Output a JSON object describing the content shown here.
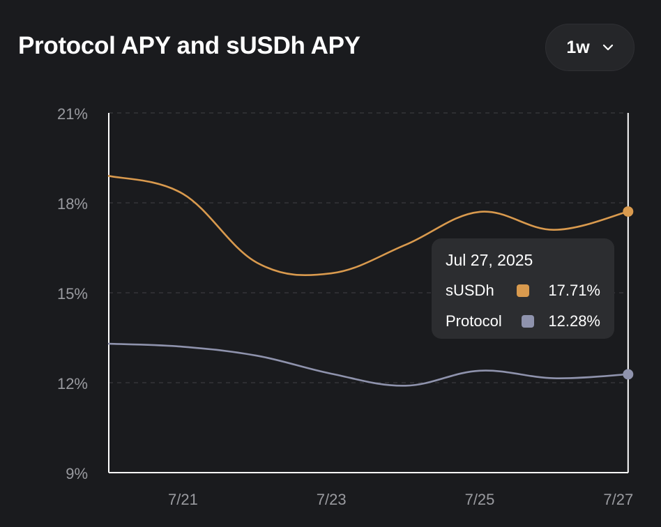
{
  "header": {
    "title": "Protocol APY and sUSDh APY"
  },
  "range_select": {
    "label": "1w",
    "icon": "chevron-down-icon"
  },
  "tooltip": {
    "date": "Jul 27, 2025",
    "rows": [
      {
        "label": "sUSDh",
        "value": "17.71%",
        "color": "#d99a4e"
      },
      {
        "label": "Protocol",
        "value": "12.28%",
        "color": "#8f93ad"
      }
    ]
  },
  "chart_data": {
    "type": "line",
    "title": "Protocol APY and sUSDh APY",
    "x": [
      "7/20",
      "7/21",
      "7/22",
      "7/23",
      "7/24",
      "7/25",
      "7/26",
      "7/27"
    ],
    "x_tick_labels": [
      "7/21",
      "7/23",
      "7/25",
      "7/27"
    ],
    "ylim": [
      9,
      21
    ],
    "y_ticks": [
      9,
      12,
      15,
      18,
      21
    ],
    "y_tick_labels": [
      "9%",
      "12%",
      "15%",
      "18%",
      "21%"
    ],
    "grid": "horizontal dashed",
    "series": [
      {
        "name": "sUSDh",
        "color": "#d99a4e",
        "values": [
          18.9,
          18.3,
          16.0,
          15.65,
          16.6,
          17.7,
          17.1,
          17.71
        ]
      },
      {
        "name": "Protocol",
        "color": "#8f93ad",
        "values": [
          13.3,
          13.2,
          12.9,
          12.3,
          11.9,
          12.4,
          12.15,
          12.28
        ]
      }
    ],
    "highlight": {
      "x": "7/27"
    }
  }
}
